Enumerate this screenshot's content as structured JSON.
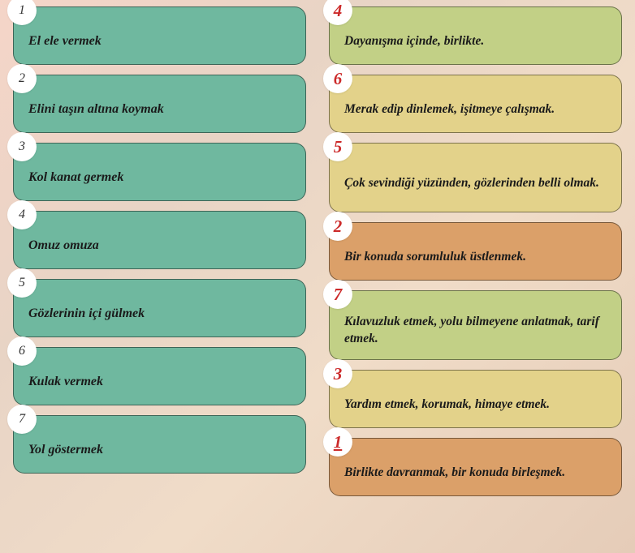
{
  "left_items": [
    {
      "num": "1",
      "text": "El ele vermek",
      "bg": "#6fb89f"
    },
    {
      "num": "2",
      "text": "Elini taşın altına koymak",
      "bg": "#6fb89f"
    },
    {
      "num": "3",
      "text": "Kol kanat germek",
      "bg": "#6fb89f"
    },
    {
      "num": "4",
      "text": "Omuz omuza",
      "bg": "#6fb89f"
    },
    {
      "num": "5",
      "text": "Gözlerinin içi gülmek",
      "bg": "#6fb89f"
    },
    {
      "num": "6",
      "text": "Kulak vermek",
      "bg": "#6fb89f"
    },
    {
      "num": "7",
      "text": "Yol göstermek",
      "bg": "#6fb89f"
    }
  ],
  "right_items": [
    {
      "num": "4",
      "text": "Dayanışma içinde, birlikte.",
      "bg": "#c2d086",
      "tall": false,
      "under": false
    },
    {
      "num": "6",
      "text": "Merak edip dinlemek, işitmeye çalışmak.",
      "bg": "#e3d28a",
      "tall": false,
      "under": false
    },
    {
      "num": "5",
      "text": "Çok sevindiği yüzünden, gözlerinden belli olmak.",
      "bg": "#e3d28a",
      "tall": true,
      "under": false
    },
    {
      "num": "2",
      "text": "Bir konuda sorumluluk üstlenmek.",
      "bg": "#dba069",
      "tall": false,
      "under": false
    },
    {
      "num": "7",
      "text": "Kılavuzluk etmek, yolu bilmeyene anlatmak, tarif etmek.",
      "bg": "#c2d086",
      "tall": true,
      "under": false
    },
    {
      "num": "3",
      "text": "Yardım etmek, korumak, himaye etmek.",
      "bg": "#e3d28a",
      "tall": false,
      "under": false
    },
    {
      "num": "1",
      "text": "Birlikte davranmak, bir konuda birleşmek.",
      "bg": "#dba069",
      "tall": false,
      "under": true
    }
  ]
}
